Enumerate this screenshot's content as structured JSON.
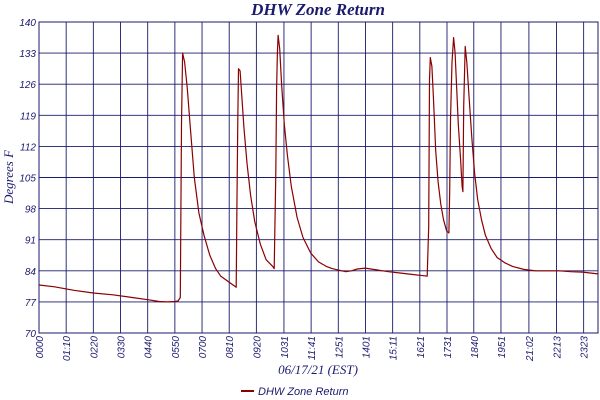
{
  "chart_data": {
    "type": "line",
    "title": "DHW Zone Return",
    "xlabel": "06/17/21 (EST)",
    "ylabel": "Degrees F",
    "ylim": [
      70,
      140
    ],
    "xlim": [
      0,
      1440
    ],
    "grid": true,
    "legend_placement": "bottom-center",
    "yticks": [
      70,
      77,
      84,
      91,
      98,
      105,
      112,
      119,
      126,
      133,
      140
    ],
    "ytick_labels": [
      "70",
      "77",
      "84",
      "91",
      "98",
      "105",
      "112",
      "119",
      "126",
      "133",
      "140"
    ],
    "xticks": [
      0,
      70,
      140,
      210,
      280,
      350,
      420,
      490,
      560,
      631,
      701,
      771,
      841,
      911,
      981,
      1051,
      1120,
      1190,
      1262,
      1333,
      1403
    ],
    "xtick_labels": [
      "0000",
      "01:10",
      "0220",
      "0330",
      "0440",
      "0550",
      "0700",
      "0810",
      "0920",
      "1031",
      "11:41",
      "1251",
      "1401",
      "15:11",
      "1621",
      "1731",
      "1840",
      "1951",
      "21:02",
      "2213",
      "2323"
    ],
    "series": [
      {
        "name": "DHW Zone Return",
        "color": "#8b0000",
        "x": [
          0,
          40,
          90,
          140,
          190,
          240,
          280,
          310,
          330,
          350,
          358,
          364,
          367,
          370,
          375,
          382,
          390,
          400,
          412,
          425,
          440,
          455,
          468,
          508,
          510,
          512,
          514,
          518,
          522,
          528,
          536,
          545,
          556,
          570,
          585,
          602,
          606,
          610,
          612,
          614,
          616,
          620,
          625,
          632,
          640,
          650,
          665,
          680,
          700,
          720,
          740,
          755,
          770,
          780,
          790,
          805,
          820,
          840,
          870,
          900,
          930,
          960,
          990,
          1000,
          1004,
          1006,
          1008,
          1012,
          1015,
          1018,
          1022,
          1028,
          1035,
          1042,
          1050,
          1056,
          1058,
          1060,
          1064,
          1068,
          1072,
          1076,
          1080,
          1086,
          1090,
          1092,
          1094,
          1098,
          1102,
          1108,
          1115,
          1122,
          1130,
          1140,
          1150,
          1165,
          1180,
          1200,
          1220,
          1250,
          1280,
          1310,
          1340,
          1370,
          1400,
          1440
        ],
        "y": [
          80.8,
          80.4,
          79.6,
          79.0,
          78.6,
          78.0,
          77.5,
          77.1,
          77.0,
          77.1,
          77.2,
          78.0,
          117.0,
          133.0,
          131.0,
          125.0,
          116.0,
          105.0,
          97.0,
          92.0,
          87.5,
          84.5,
          82.8,
          80.3,
          100.5,
          118.0,
          129.5,
          129.0,
          124.0,
          116.0,
          108.0,
          101.0,
          95.0,
          90.0,
          86.5,
          85.0,
          84.5,
          106.0,
          125.0,
          133.0,
          137.0,
          134.0,
          126.0,
          117.0,
          110.0,
          103.0,
          96.0,
          91.5,
          88.0,
          86.0,
          85.0,
          84.5,
          84.2,
          84.0,
          83.8,
          84.0,
          84.4,
          84.6,
          84.2,
          83.8,
          83.5,
          83.2,
          82.9,
          82.8,
          94.0,
          127.0,
          132.0,
          130.0,
          125.0,
          119.0,
          111.0,
          104.0,
          99.0,
          95.5,
          93.0,
          92.5,
          102.0,
          118.0,
          131.0,
          136.5,
          133.0,
          125.0,
          117.0,
          109.0,
          103.0,
          101.8,
          121.0,
          134.5,
          131.0,
          123.0,
          114.0,
          106.0,
          100.0,
          95.5,
          92.0,
          89.0,
          87.0,
          85.8,
          85.0,
          84.3,
          84.0,
          84.0,
          84.0,
          83.8,
          83.7,
          83.3
        ]
      }
    ]
  }
}
